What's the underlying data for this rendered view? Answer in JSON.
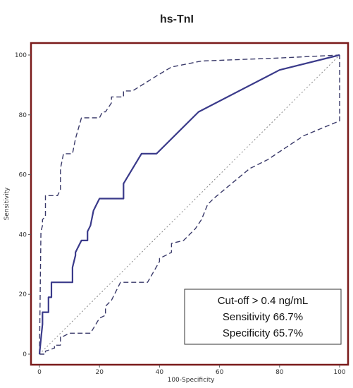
{
  "chart_data": {
    "type": "line",
    "title": "hs-TnI",
    "xlabel": "100-Specificity",
    "ylabel": "Sensitivity",
    "xlim": [
      0,
      100
    ],
    "ylim": [
      0,
      100
    ],
    "x_ticks": [
      0,
      20,
      40,
      60,
      80,
      100
    ],
    "y_ticks": [
      0,
      20,
      40,
      60,
      80,
      100
    ],
    "grid": false,
    "legend": "none",
    "colors": {
      "frame": "#7a1a1a",
      "roc": "#3a3a8a",
      "diagonal": "#888888",
      "ci": "#3a3a6a"
    },
    "annotation": {
      "position": "bottom-right",
      "lines": [
        "Cut-off > 0.4 ng/mL",
        "Sensitivity 66.7%",
        "Specificity 65.7%"
      ]
    },
    "series": [
      {
        "role": "roc",
        "style": "solid",
        "x": [
          0,
          0.5,
          1,
          1,
          3,
          3,
          4,
          4,
          11,
          11,
          12,
          12,
          14,
          14,
          16,
          16,
          17,
          18,
          19,
          20,
          28,
          28,
          34,
          34,
          39,
          53,
          80,
          100
        ],
        "y": [
          0,
          5,
          10,
          14,
          14,
          19,
          19,
          24,
          24,
          29,
          33,
          34,
          38,
          38,
          38,
          41,
          43,
          48,
          50,
          52,
          52,
          57,
          67,
          67,
          67,
          81,
          95,
          100
        ]
      },
      {
        "role": "ci-upper",
        "style": "dashed",
        "x": [
          0,
          0.5,
          1,
          1,
          2,
          2,
          6,
          7,
          7,
          8,
          11,
          12,
          14,
          20,
          21,
          22,
          24,
          24,
          28,
          28,
          31,
          39,
          44,
          54,
          80,
          100
        ],
        "y": [
          0,
          41,
          43,
          45,
          46,
          53,
          53,
          55,
          62,
          67,
          67,
          72,
          79,
          79,
          81,
          81,
          84,
          86,
          86,
          88,
          88,
          93,
          96,
          98,
          99,
          100
        ]
      },
      {
        "role": "ci-lower",
        "style": "dashed",
        "x": [
          0,
          2,
          2,
          5,
          5,
          7,
          7,
          8,
          10,
          12,
          12,
          16,
          17,
          17,
          20,
          22,
          22,
          24,
          27,
          36,
          40,
          40,
          42,
          44,
          44,
          48,
          52,
          54,
          56,
          58,
          64,
          70,
          76,
          82,
          88,
          100,
          100
        ],
        "y": [
          0,
          0,
          1,
          2,
          3,
          3,
          6,
          6,
          7,
          7,
          7,
          7,
          7,
          7,
          12,
          13,
          16,
          18,
          24,
          24,
          31,
          32,
          33,
          34,
          37,
          38,
          42,
          45,
          50,
          52,
          57,
          62,
          65,
          69,
          73,
          78,
          100
        ]
      },
      {
        "role": "reference",
        "style": "dotted",
        "x": [
          0,
          100
        ],
        "y": [
          0,
          100
        ]
      }
    ]
  }
}
